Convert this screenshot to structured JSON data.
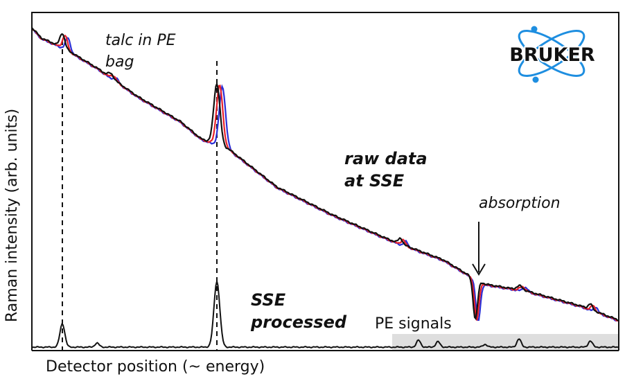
{
  "chart_data": {
    "type": "line",
    "title": "",
    "xlabel": "Detector position (~ energy)",
    "ylabel": "Raman intensity (arb. units)",
    "x_ticks": "none",
    "y_ticks": "none",
    "grid": false,
    "series": [
      {
        "name": "raw data at SSE (black)",
        "color": "#111111"
      },
      {
        "name": "raw data at SSE (red)",
        "color": "#e8202a"
      },
      {
        "name": "raw data at SSE (blue)",
        "color": "#2b2fd6"
      },
      {
        "name": "SSE processed",
        "color": "#111111"
      }
    ],
    "annotations": {
      "talc_line1": "talc in PE",
      "talc_line2": "bag",
      "raw_line1": "raw data",
      "raw_line2": "at SSE",
      "absorption": "absorption",
      "sse_line1": "SSE",
      "sse_line2": "processed",
      "pe_signals": "PE signals"
    },
    "logo": "BRUKER",
    "colors": {
      "pe_band": "#dedede",
      "logo_orbit": "#1e8ee0"
    }
  }
}
